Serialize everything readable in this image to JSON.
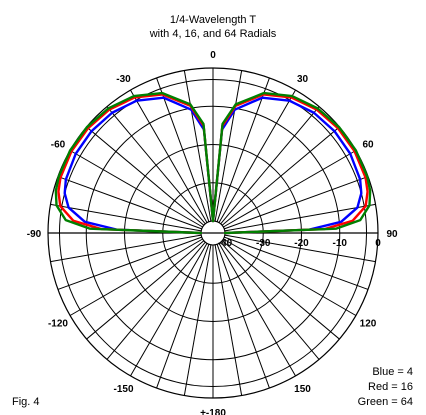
{
  "chart_data": {
    "type": "polar",
    "title_line1": "1/4-Wavelength T",
    "title_line2": "with 4, 16, and 64 Radials",
    "angle_labels": [
      {
        "deg": 0,
        "text": "0"
      },
      {
        "deg": 30,
        "text": "30"
      },
      {
        "deg": 60,
        "text": "60"
      },
      {
        "deg": 90,
        "text": "90"
      },
      {
        "deg": 120,
        "text": "120"
      },
      {
        "deg": 150,
        "text": "150"
      },
      {
        "deg": 180,
        "text": "+-180"
      },
      {
        "deg": -150,
        "text": "-150"
      },
      {
        "deg": -120,
        "text": "-120"
      },
      {
        "deg": -90,
        "text": "-90"
      },
      {
        "deg": -60,
        "text": "-60"
      },
      {
        "deg": -30,
        "text": "-30"
      }
    ],
    "db_labels": [
      {
        "db": 0,
        "text": "0"
      },
      {
        "db": -10,
        "text": "-10"
      },
      {
        "db": -20,
        "text": "-20"
      },
      {
        "db": -30,
        "text": "-30"
      },
      {
        "db": -40,
        "text": "-40"
      }
    ],
    "db_rings": [
      0,
      -3,
      -10,
      -20,
      -30,
      -40
    ],
    "spoke_step_deg": 10,
    "series": [
      {
        "name": "Blue = 4",
        "color": "#0000ff",
        "zenith": [
          0,
          5,
          10,
          20,
          30,
          40,
          50,
          60,
          70,
          75,
          80,
          85,
          88,
          90
        ],
        "db": [
          -40,
          -16,
          -10.4,
          -5.5,
          -3.2,
          -2.1,
          -1.7,
          -1.7,
          -2.2,
          -3.0,
          -4.8,
          -9.5,
          -18,
          -40
        ]
      },
      {
        "name": "Red = 16",
        "color": "#ff0000",
        "zenith": [
          0,
          5,
          10,
          20,
          30,
          40,
          50,
          60,
          70,
          75,
          80,
          85,
          88,
          90
        ],
        "db": [
          -40,
          -15,
          -9.4,
          -4.6,
          -2.2,
          -1.0,
          -0.5,
          -0.4,
          -0.7,
          -1.3,
          -2.6,
          -6.5,
          -14,
          -40
        ]
      },
      {
        "name": "Green = 64",
        "color": "#008000",
        "zenith": [
          0,
          5,
          10,
          20,
          30,
          40,
          50,
          60,
          70,
          75,
          80,
          85,
          88,
          90
        ],
        "db": [
          -40,
          -14.5,
          -9.0,
          -4.2,
          -1.8,
          -0.6,
          -0.1,
          0,
          -0.2,
          -0.6,
          -1.6,
          -4.5,
          -11,
          -40
        ]
      }
    ]
  },
  "legend": {
    "blue": "Blue = 4",
    "red": "Red = 16",
    "green": "Green = 64"
  },
  "figure_label": "Fig. 4"
}
